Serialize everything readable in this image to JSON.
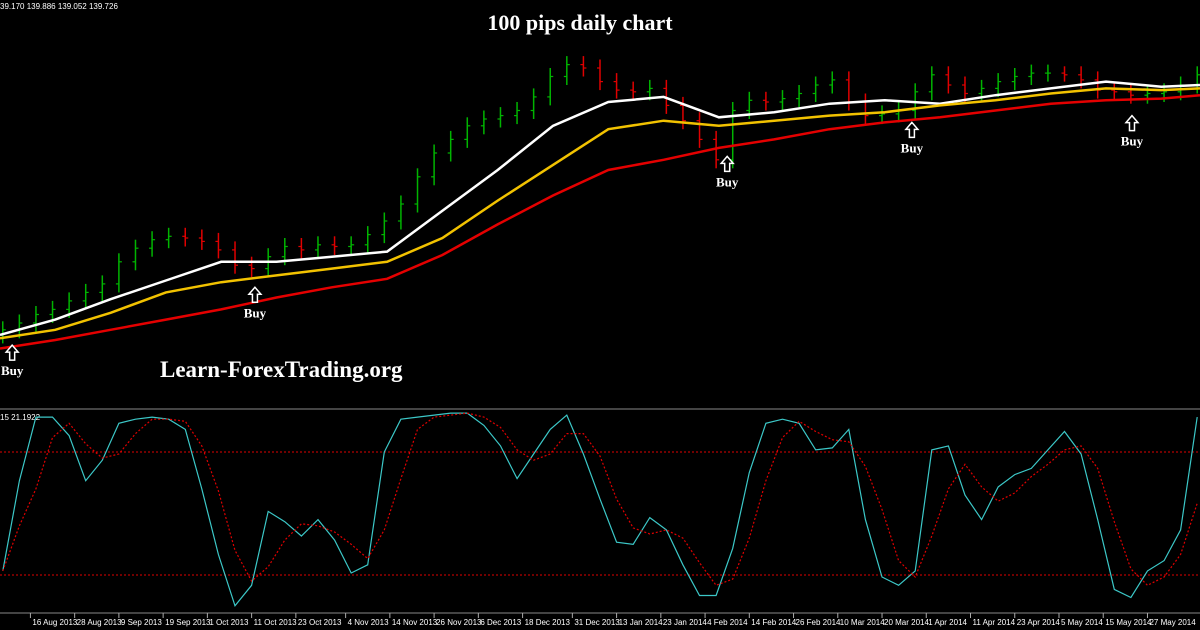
{
  "chart_data": [
    {
      "type": "ohlc",
      "title": "100 pips daily chart",
      "watermark": "Learn-ForexTrading.org",
      "info": "39.170 139.886 139.052 139.726",
      "xlim": [
        2.5,
        219.5
      ],
      "ylim": [
        124,
        148
      ],
      "up_color": "#00b400",
      "down_color": "#e00000",
      "x": [
        3,
        6,
        9,
        12,
        15,
        18,
        21,
        24,
        27,
        30,
        33,
        36,
        39,
        42,
        45,
        48,
        51,
        54,
        57,
        60,
        63,
        66,
        69,
        72,
        75,
        78,
        81,
        84,
        87,
        90,
        93,
        96,
        99,
        102,
        105,
        108,
        111,
        114,
        117,
        120,
        123,
        126,
        129,
        132,
        135,
        138,
        141,
        144,
        147,
        150,
        153,
        156,
        159,
        162,
        165,
        168,
        171,
        174,
        177,
        180,
        183,
        186,
        189,
        192,
        195,
        198,
        201,
        204,
        207,
        210,
        213,
        216,
        219
      ],
      "open": [
        128.3,
        128.6,
        129.0,
        129.5,
        129.8,
        130.3,
        130.8,
        131.3,
        132.6,
        133.4,
        133.9,
        134.1,
        134.0,
        133.8,
        133.3,
        132.4,
        132.2,
        132.9,
        133.5,
        133.3,
        133.6,
        133.5,
        133.6,
        134.2,
        135.0,
        136.0,
        137.6,
        139.0,
        139.8,
        140.6,
        141.0,
        141.2,
        141.5,
        142.3,
        143.5,
        144.2,
        144.0,
        143.2,
        142.7,
        142.6,
        142.8,
        141.8,
        140.9,
        139.8,
        138.6,
        141.5,
        142.1,
        142.0,
        142.2,
        142.5,
        143.0,
        143.3,
        142.0,
        141.2,
        141.3,
        141.5,
        142.6,
        143.6,
        143.0,
        142.5,
        142.8,
        143.2,
        143.5,
        143.7,
        143.7,
        143.6,
        143.3,
        142.7,
        142.6,
        142.4,
        142.5,
        142.6,
        143.0
      ],
      "high": [
        129.1,
        129.5,
        130.0,
        130.3,
        130.8,
        131.3,
        131.8,
        133.1,
        133.9,
        134.4,
        134.6,
        134.6,
        134.5,
        134.3,
        133.8,
        132.9,
        133.4,
        134.0,
        134.0,
        134.1,
        134.1,
        134.1,
        134.7,
        135.5,
        136.5,
        138.1,
        139.5,
        140.3,
        141.1,
        141.5,
        141.7,
        142.0,
        142.8,
        144.0,
        144.7,
        144.7,
        144.5,
        143.7,
        143.2,
        143.3,
        143.3,
        142.3,
        141.4,
        140.3,
        142.0,
        142.6,
        142.6,
        142.7,
        143.0,
        143.5,
        143.8,
        143.8,
        142.5,
        141.8,
        142.0,
        143.1,
        144.1,
        144.1,
        143.5,
        143.3,
        143.7,
        144.0,
        144.2,
        144.2,
        144.1,
        144.1,
        143.8,
        143.2,
        143.1,
        143.0,
        143.1,
        143.5,
        144.1
      ],
      "low": [
        127.8,
        128.1,
        128.5,
        129.0,
        129.3,
        129.8,
        130.3,
        130.8,
        132.1,
        132.9,
        133.4,
        133.5,
        133.3,
        132.8,
        131.9,
        131.7,
        131.7,
        132.4,
        132.8,
        132.8,
        133.0,
        133.0,
        133.1,
        133.7,
        134.5,
        135.5,
        137.1,
        138.5,
        139.3,
        140.1,
        140.5,
        140.7,
        141.0,
        141.8,
        143.0,
        143.5,
        142.7,
        142.2,
        142.1,
        142.1,
        141.3,
        140.4,
        139.3,
        138.1,
        138.1,
        141.0,
        141.5,
        141.5,
        141.7,
        142.0,
        142.5,
        141.5,
        140.7,
        140.7,
        140.8,
        141.0,
        142.1,
        142.5,
        142.0,
        142.0,
        142.3,
        142.7,
        143.0,
        143.2,
        143.2,
        142.8,
        142.2,
        142.1,
        141.9,
        141.9,
        142.0,
        142.1,
        142.5
      ],
      "close": [
        128.6,
        129.0,
        129.5,
        129.8,
        130.3,
        130.8,
        131.3,
        132.6,
        133.4,
        133.9,
        134.1,
        134.0,
        133.8,
        133.3,
        132.4,
        132.2,
        132.9,
        133.5,
        133.3,
        133.6,
        133.5,
        133.6,
        134.2,
        135.0,
        136.0,
        137.6,
        139.0,
        139.8,
        140.6,
        141.0,
        141.2,
        141.5,
        142.3,
        143.5,
        144.2,
        144.0,
        143.2,
        142.7,
        142.6,
        142.8,
        141.8,
        140.9,
        139.8,
        138.6,
        141.5,
        142.1,
        142.0,
        142.2,
        142.5,
        143.0,
        143.3,
        142.0,
        141.2,
        141.3,
        141.5,
        142.6,
        143.6,
        143.0,
        142.5,
        142.8,
        143.2,
        143.5,
        143.7,
        143.7,
        143.6,
        143.3,
        142.7,
        142.6,
        142.4,
        142.5,
        142.6,
        143.0,
        143.6
      ],
      "ma_x": [
        2.5,
        12.5,
        22.5,
        32.5,
        42.5,
        52.5,
        62.5,
        72.5,
        82.5,
        92.5,
        102.5,
        112.5,
        122.5,
        132.5,
        142.5,
        152.5,
        162.5,
        172.5,
        182.5,
        192.5,
        202.5,
        212.5,
        219.5
      ],
      "lines": [
        {
          "color": "#ffffff",
          "values": [
            128.3,
            129.2,
            130.4,
            131.5,
            132.6,
            132.6,
            132.9,
            133.2,
            135.6,
            138.0,
            140.6,
            142.0,
            142.3,
            141.1,
            141.4,
            141.9,
            142.1,
            141.9,
            142.4,
            142.8,
            143.2,
            142.9,
            143.0
          ]
        },
        {
          "color": "#f2c200",
          "values": [
            128.1,
            128.6,
            129.6,
            130.8,
            131.4,
            131.8,
            132.2,
            132.6,
            134.0,
            136.2,
            138.3,
            140.4,
            140.9,
            140.6,
            140.9,
            141.2,
            141.4,
            141.8,
            142.1,
            142.5,
            142.8,
            142.7,
            142.8
          ]
        },
        {
          "color": "#e40000",
          "values": [
            127.5,
            128.0,
            128.6,
            129.2,
            129.8,
            130.5,
            131.1,
            131.6,
            133.0,
            134.8,
            136.5,
            138.0,
            138.6,
            139.3,
            139.8,
            140.4,
            140.8,
            141.1,
            141.5,
            141.9,
            142.1,
            142.2,
            142.4
          ]
        }
      ],
      "annotations": [
        {
          "text": "Buy",
          "x": 4.7,
          "y": 127.7
        },
        {
          "text": "Buy",
          "x": 48.6,
          "y": 131.1
        },
        {
          "text": "Buy",
          "x": 134,
          "y": 138.8
        },
        {
          "text": "Buy",
          "x": 167.4,
          "y": 140.8
        },
        {
          "text": "Buy",
          "x": 207.2,
          "y": 141.2
        }
      ]
    },
    {
      "type": "line",
      "label": "15 21.1922",
      "xlim": [
        2.5,
        219.5
      ],
      "ylim": [
        0,
        100
      ],
      "levels": [
        20,
        80
      ],
      "level_color": "#e00000",
      "xticks": [
        {
          "value": 8,
          "label": "16 Aug 2013"
        },
        {
          "value": 16,
          "label": "28 Aug 2013"
        },
        {
          "value": 24,
          "label": "9 Sep 2013"
        },
        {
          "value": 32,
          "label": "19 Sep 2013"
        },
        {
          "value": 40,
          "label": "1 Oct 2013"
        },
        {
          "value": 48,
          "label": "11 Oct 2013"
        },
        {
          "value": 56,
          "label": "23 Oct 2013"
        },
        {
          "value": 65,
          "label": "4 Nov 2013"
        },
        {
          "value": 73,
          "label": "14 Nov 2013"
        },
        {
          "value": 81,
          "label": "26 Nov 2013"
        },
        {
          "value": 89,
          "label": "6 Dec 2013"
        },
        {
          "value": 97,
          "label": "18 Dec 2013"
        },
        {
          "value": 106,
          "label": "31 Dec 2013"
        },
        {
          "value": 114,
          "label": "13 Jan 2014"
        },
        {
          "value": 122,
          "label": "23 Jan 2014"
        },
        {
          "value": 130,
          "label": "4 Feb 2014"
        },
        {
          "value": 138,
          "label": "14 Feb 2014"
        },
        {
          "value": 146,
          "label": "26 Feb 2014"
        },
        {
          "value": 154,
          "label": "10 Mar 2014"
        },
        {
          "value": 162,
          "label": "20 Mar 2014"
        },
        {
          "value": 170,
          "label": "1 Apr 2014"
        },
        {
          "value": 178,
          "label": "11 Apr 2014"
        },
        {
          "value": 186,
          "label": "23 Apr 2014"
        },
        {
          "value": 194,
          "label": "5 May 2014"
        },
        {
          "value": 202,
          "label": "15 May 2014"
        },
        {
          "value": 210,
          "label": "27 May 2014"
        }
      ],
      "x": [
        3,
        6,
        9,
        12,
        15,
        18,
        21,
        24,
        27,
        30,
        33,
        36,
        39,
        42,
        45,
        48,
        51,
        54,
        57,
        60,
        63,
        66,
        69,
        72,
        75,
        78,
        81,
        84,
        87,
        90,
        93,
        96,
        99,
        102,
        105,
        108,
        111,
        114,
        117,
        120,
        123,
        126,
        129,
        132,
        135,
        138,
        141,
        144,
        147,
        150,
        153,
        156,
        159,
        162,
        165,
        168,
        171,
        174,
        177,
        180,
        183,
        186,
        189,
        192,
        195,
        198,
        201,
        204,
        207,
        210,
        213,
        216,
        219
      ],
      "series": [
        {
          "color": "#3cc8c8",
          "dashed": false,
          "values": [
            22,
            66,
            97,
            97,
            88,
            66,
            76,
            94,
            96,
            97,
            96,
            91,
            62,
            30,
            5,
            15,
            51,
            46,
            39,
            47,
            37,
            21,
            25,
            80,
            96,
            97,
            98,
            99,
            99,
            93,
            83,
            67,
            79,
            91,
            98,
            79,
            57,
            36,
            35,
            48,
            42,
            25,
            10,
            10,
            33,
            70,
            94,
            96,
            94,
            81,
            82,
            91,
            47,
            19,
            15,
            22,
            81,
            83,
            59,
            47,
            63,
            69,
            72,
            81,
            90,
            79,
            47,
            13,
            9,
            22,
            27,
            42,
            97
          ]
        },
        {
          "color": "#e00000",
          "dashed": true,
          "values": [
            22,
            44,
            62,
            87,
            94,
            84,
            77,
            79,
            89,
            96,
            96,
            95,
            83,
            61,
            32,
            17,
            24,
            37,
            45,
            44,
            41,
            35,
            28,
            42,
            67,
            91,
            97,
            98,
            99,
            97,
            92,
            81,
            76,
            79,
            89,
            89,
            78,
            57,
            43,
            40,
            42,
            38,
            26,
            15,
            18,
            38,
            66,
            87,
            95,
            90,
            86,
            85,
            73,
            52,
            27,
            19,
            39,
            62,
            74,
            63,
            56,
            60,
            68,
            74,
            81,
            83,
            72,
            46,
            23,
            15,
            19,
            30,
            55
          ]
        }
      ]
    }
  ]
}
